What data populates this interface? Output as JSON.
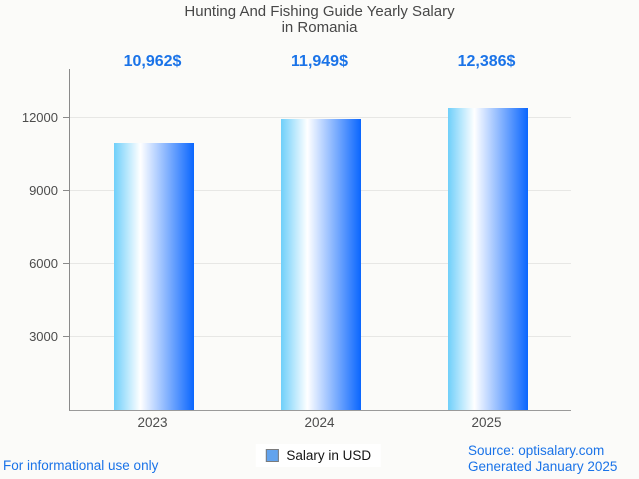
{
  "title": {
    "line1": "Hunting And Fishing Guide Yearly Salary",
    "line2": "in Romania"
  },
  "chart_data": {
    "type": "bar",
    "title": "Hunting And Fishing Guide Yearly Salary in Romania",
    "categories": [
      "2023",
      "2024",
      "2025"
    ],
    "values": [
      10962,
      11949,
      12386
    ],
    "value_labels": [
      "10,962$",
      "11,949$",
      "12,386$"
    ],
    "series_name": "Salary in USD",
    "xlabel": "",
    "ylabel": "",
    "ylim": [
      0,
      14000
    ],
    "yticks": [
      3000,
      6000,
      9000,
      12000
    ],
    "grid": true,
    "legend_position": "bottom"
  },
  "legend": {
    "label": "Salary in USD"
  },
  "footer": {
    "disclaimer": "For informational use only",
    "source": "Source: optisalary.com",
    "generated": "Generated January 2025"
  },
  "colors": {
    "accent_blue": "#1a73e8",
    "bar_gradient_left": "#6fcffa",
    "bar_gradient_mid": "#ffffff",
    "bar_gradient_right": "#0a66fe",
    "legend_swatch": "#62a3ee",
    "axis": "#8a8a8a",
    "grid": "#e7e7e5",
    "text_gray": "#4c4c4c",
    "background": "#fbfbf9"
  }
}
